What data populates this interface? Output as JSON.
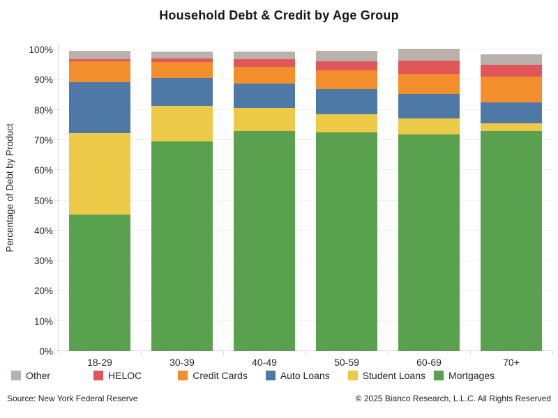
{
  "title": "Household Debt & Credit by Age Group",
  "chart_data": {
    "type": "bar",
    "stacked": true,
    "title": "Household Debt & Credit by Age Group",
    "xlabel": "",
    "ylabel": "Percentage of Debt by Product",
    "ylim": [
      0,
      100
    ],
    "ytick_labels": [
      "0%",
      "10%",
      "20%",
      "30%",
      "40%",
      "50%",
      "60%",
      "70%",
      "80%",
      "90%",
      "100%"
    ],
    "grid": true,
    "legend_position": "bottom",
    "categories": [
      "18-29",
      "30-39",
      "40-49",
      "50-59",
      "60-69",
      "70+"
    ],
    "series": [
      {
        "name": "Mortgages",
        "color": "#59A14F",
        "values": [
          45.2,
          69.5,
          73.0,
          72.5,
          71.9,
          73.0
        ]
      },
      {
        "name": "Student Loans",
        "color": "#EDC948",
        "values": [
          27.2,
          11.8,
          7.7,
          6.0,
          5.2,
          2.5
        ]
      },
      {
        "name": "Auto Loans",
        "color": "#4E79A7",
        "values": [
          16.8,
          9.3,
          8.1,
          8.3,
          8.1,
          6.9
        ]
      },
      {
        "name": "Credit Cards",
        "color": "#F28E2B",
        "values": [
          7.0,
          5.3,
          5.4,
          6.4,
          6.8,
          8.5
        ]
      },
      {
        "name": "HELOC",
        "color": "#E15759",
        "values": [
          0.6,
          1.1,
          2.5,
          3.0,
          4.4,
          4.0
        ]
      },
      {
        "name": "Other",
        "color": "#BAB0AC",
        "values": [
          2.7,
          2.4,
          2.6,
          3.3,
          3.9,
          3.5
        ]
      }
    ],
    "legend_order": [
      "Other",
      "HELOC",
      "Credit Cards",
      "Auto Loans",
      "Student Loans",
      "Mortgages"
    ]
  },
  "footer": {
    "source": "Source: New York Federal Reserve",
    "copyright": "© 2025 Bianco Research, L.L.C. All Rights Reserved"
  }
}
